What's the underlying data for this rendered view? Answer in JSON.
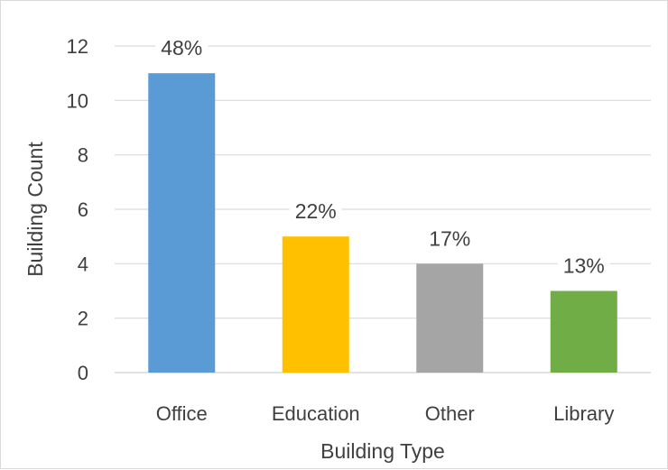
{
  "chart_data": {
    "type": "bar",
    "categories": [
      "Office",
      "Education",
      "Other",
      "Library"
    ],
    "values": [
      11,
      5,
      4,
      3
    ],
    "data_labels": [
      "48%",
      "22%",
      "17%",
      "13%"
    ],
    "colors": [
      "#5B9BD5",
      "#FFC000",
      "#A5A5A5",
      "#70AD47"
    ],
    "title": "",
    "xlabel": "Building Type",
    "ylabel": "Building Count",
    "ylim": [
      0,
      12
    ],
    "yticks": [
      "0",
      "2",
      "4",
      "6",
      "8",
      "10",
      "12"
    ],
    "grid": true,
    "legend": "none"
  }
}
